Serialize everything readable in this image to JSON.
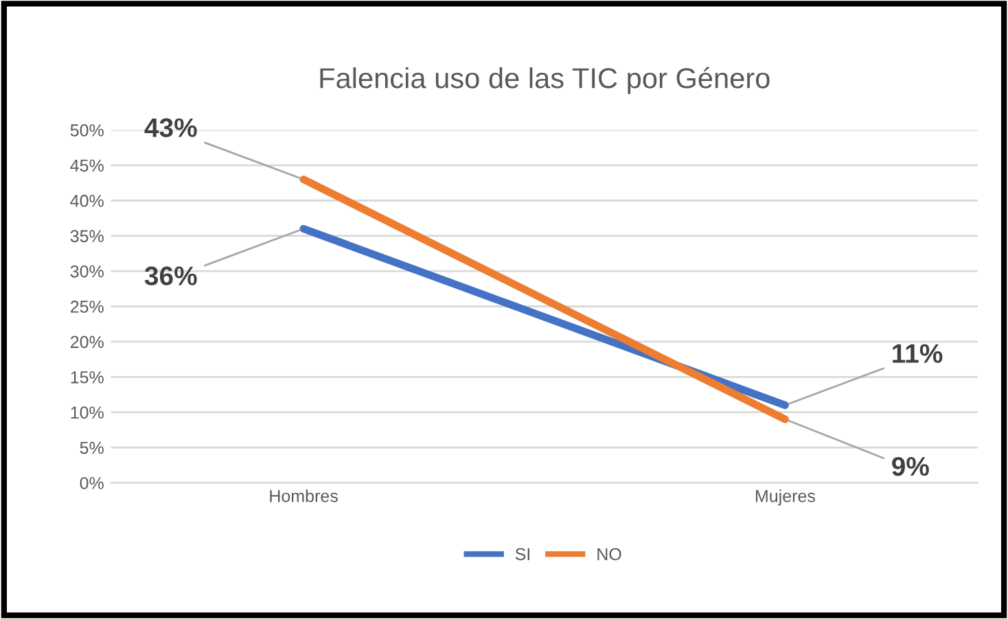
{
  "chart_data": {
    "type": "line",
    "title": "Falencia uso de las TIC por Género",
    "categories": [
      "Hombres",
      "Mujeres"
    ],
    "series": [
      {
        "name": "SI",
        "color": "#4472c4",
        "values": [
          36,
          11
        ],
        "value_labels": [
          "36%",
          "11%"
        ]
      },
      {
        "name": "NO",
        "color": "#ed7d31",
        "values": [
          43,
          9
        ],
        "value_labels": [
          "43%",
          "9%"
        ]
      }
    ],
    "ylim": [
      0,
      50
    ],
    "yticks": [
      {
        "value": 0,
        "label": "0%"
      },
      {
        "value": 5,
        "label": "5%"
      },
      {
        "value": 10,
        "label": "10%"
      },
      {
        "value": 15,
        "label": "15%"
      },
      {
        "value": 20,
        "label": "20%"
      },
      {
        "value": 25,
        "label": "25%"
      },
      {
        "value": 30,
        "label": "30%"
      },
      {
        "value": 35,
        "label": "35%"
      },
      {
        "value": 40,
        "label": "40%"
      },
      {
        "value": 45,
        "label": "45%"
      },
      {
        "value": 50,
        "label": "50%"
      }
    ],
    "grid": "y",
    "legend": "bottom",
    "marker": "none",
    "line_style": "solid"
  }
}
